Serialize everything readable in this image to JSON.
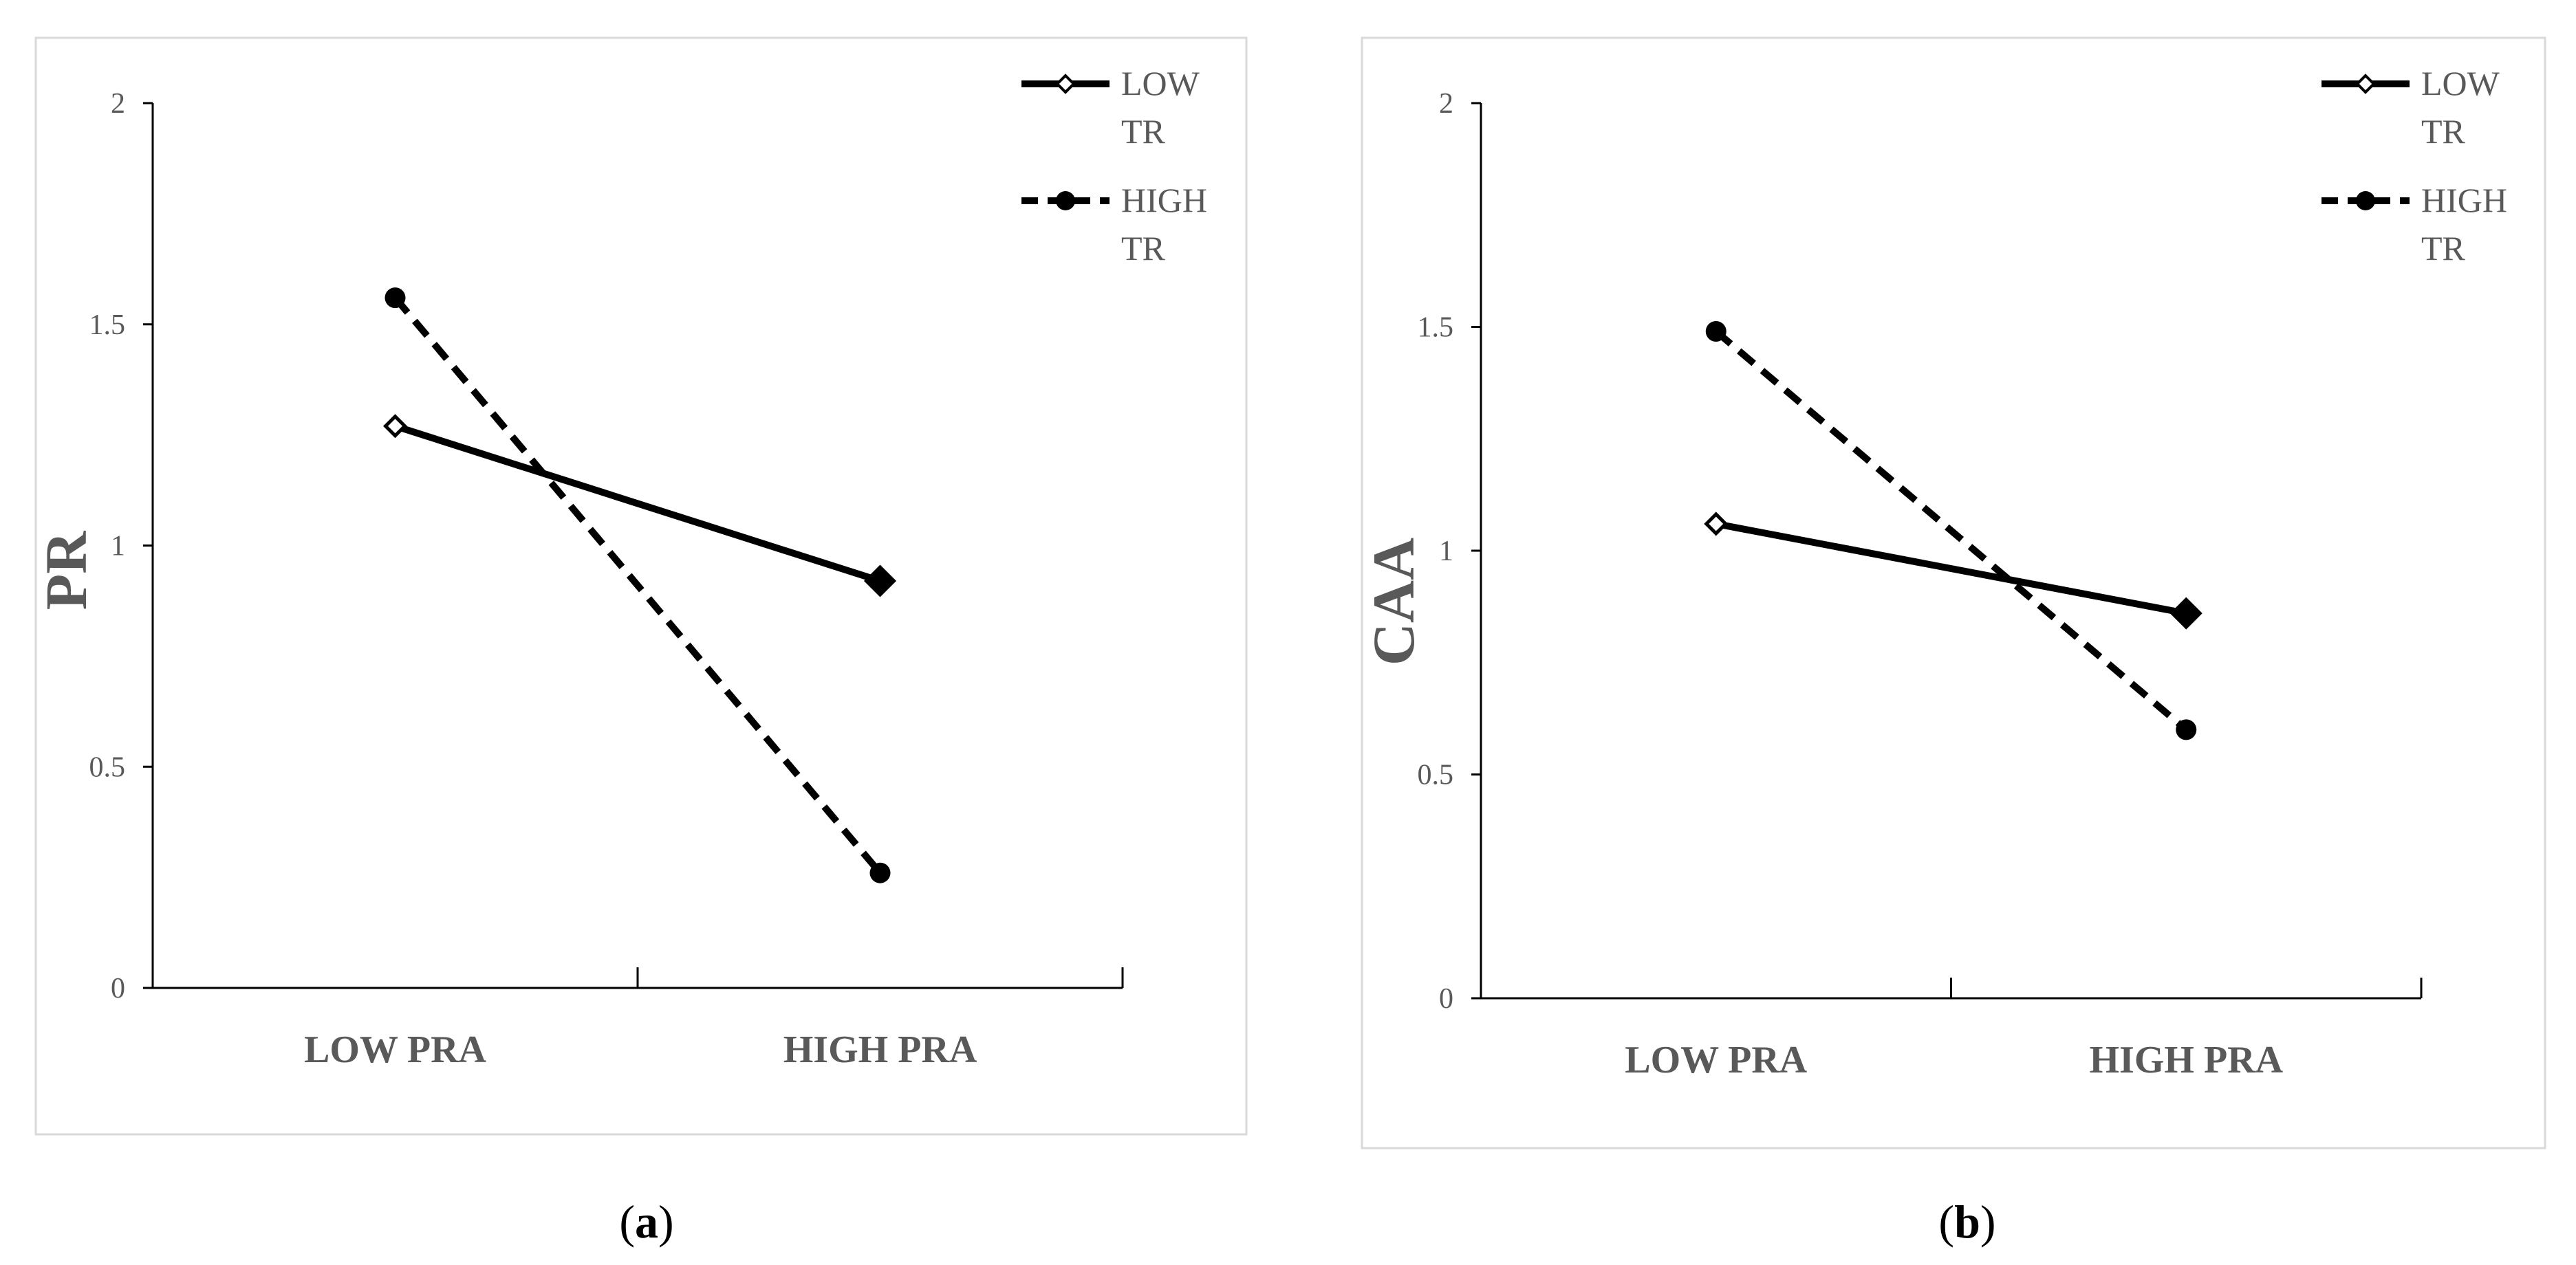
{
  "chart_data": [
    {
      "type": "line",
      "panel_label": "a",
      "ylabel": "PR",
      "xlabel": "",
      "categories": [
        "LOW  PRA",
        "HIGH  PRA"
      ],
      "ylim": [
        0,
        2
      ],
      "yticks": [
        "0",
        "0.5",
        "1",
        "1.5",
        "2"
      ],
      "series": [
        {
          "name": "LOW TR",
          "values": [
            1.27,
            0.92
          ],
          "style": "solid",
          "marker": "diamond"
        },
        {
          "name": "HIGH TR",
          "values": [
            1.56,
            0.26
          ],
          "style": "dashed",
          "marker": "circle"
        }
      ],
      "legend": "top-right",
      "grid": false
    },
    {
      "type": "line",
      "panel_label": "b",
      "ylabel": "CAA",
      "xlabel": "",
      "categories": [
        "LOW  PRA",
        "HIGH  PRA"
      ],
      "ylim": [
        0,
        2
      ],
      "yticks": [
        "0",
        "0.5",
        "1",
        "1.5",
        "2"
      ],
      "series": [
        {
          "name": "LOW TR",
          "values": [
            1.06,
            0.86
          ],
          "style": "solid",
          "marker": "diamond"
        },
        {
          "name": "HIGH TR",
          "values": [
            1.49,
            0.6
          ],
          "style": "dashed",
          "marker": "circle"
        }
      ],
      "legend": "top-right",
      "grid": false
    }
  ],
  "colors": {
    "line": "#000000",
    "text": "#595959",
    "axis": "#000000",
    "frame": "#d9d9d9"
  }
}
